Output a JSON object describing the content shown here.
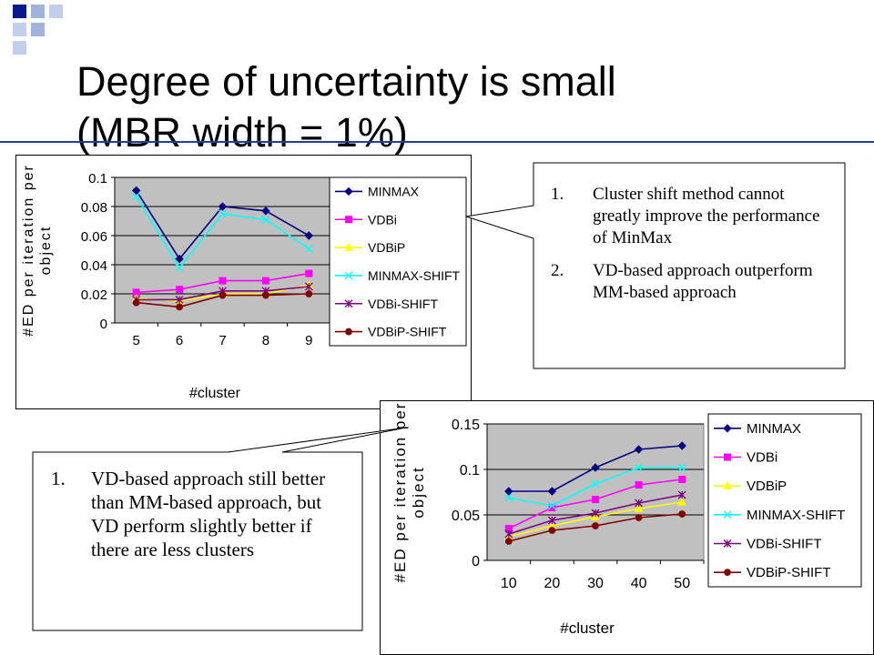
{
  "slide": {
    "title_line1": "Degree of uncertainty is small",
    "title_line2": "(MBR width = 1%)"
  },
  "callouts": [
    {
      "items": [
        {
          "num": "1.",
          "text": "Cluster shift method cannot greatly improve the performance of MinMax"
        },
        {
          "num": "2.",
          "text": "VD-based approach outperform MM-based approach"
        }
      ]
    },
    {
      "items": [
        {
          "num": "1.",
          "text": "VD-based approach still better than MM-based approach, but VD perform slightly better if there are less clusters"
        }
      ]
    }
  ],
  "colors": {
    "accent_blue": "#1f3f9e",
    "plot_bg": "#c0c0c0",
    "MINMAX": "#000080",
    "VDBi": "#ff00ff",
    "VDBiP": "#ffff00",
    "MINMAX-SHIFT": "#00ffff",
    "VDBi-SHIFT": "#800080",
    "VDBiP-SHIFT": "#800000"
  },
  "chart_data": [
    {
      "type": "line",
      "xlabel": "#cluster",
      "ylabel": "#ED per iteration per object",
      "categories": [
        "5",
        "6",
        "7",
        "8",
        "9"
      ],
      "ylim": [
        0,
        0.1
      ],
      "yticks": [
        "0",
        "0.02",
        "0.04",
        "0.06",
        "0.08",
        "0.1"
      ],
      "grid": true,
      "legend_position": "right",
      "series": [
        {
          "name": "MINMAX",
          "marker": "diamond",
          "values": [
            0.091,
            0.044,
            0.08,
            0.077,
            0.06
          ]
        },
        {
          "name": "VDBi",
          "marker": "square",
          "values": [
            0.021,
            0.023,
            0.029,
            0.029,
            0.034
          ]
        },
        {
          "name": "VDBiP",
          "marker": "triangle",
          "values": [
            0.017,
            0.015,
            0.02,
            0.02,
            0.026
          ]
        },
        {
          "name": "MINMAX-SHIFT",
          "marker": "x",
          "values": [
            0.087,
            0.038,
            0.075,
            0.071,
            0.051
          ]
        },
        {
          "name": "VDBi-SHIFT",
          "marker": "star",
          "values": [
            0.016,
            0.016,
            0.022,
            0.022,
            0.025
          ]
        },
        {
          "name": "VDBiP-SHIFT",
          "marker": "circle",
          "values": [
            0.014,
            0.011,
            0.019,
            0.019,
            0.02
          ]
        }
      ]
    },
    {
      "type": "line",
      "xlabel": "#cluster",
      "ylabel": "#ED per iteration per object",
      "categories": [
        "10",
        "20",
        "30",
        "40",
        "50"
      ],
      "ylim": [
        0,
        0.15
      ],
      "yticks": [
        "0",
        "0.05",
        "0.1",
        "0.15"
      ],
      "grid": true,
      "legend_position": "right",
      "series": [
        {
          "name": "MINMAX",
          "marker": "diamond",
          "values": [
            0.076,
            0.076,
            0.102,
            0.122,
            0.126
          ]
        },
        {
          "name": "VDBi",
          "marker": "square",
          "values": [
            0.035,
            0.058,
            0.067,
            0.083,
            0.089
          ]
        },
        {
          "name": "VDBiP",
          "marker": "triangle",
          "values": [
            0.026,
            0.038,
            0.048,
            0.057,
            0.064
          ]
        },
        {
          "name": "MINMAX-SHIFT",
          "marker": "x",
          "values": [
            0.069,
            0.06,
            0.084,
            0.102,
            0.102
          ]
        },
        {
          "name": "VDBi-SHIFT",
          "marker": "star",
          "values": [
            0.029,
            0.044,
            0.052,
            0.063,
            0.072
          ]
        },
        {
          "name": "VDBiP-SHIFT",
          "marker": "circle",
          "values": [
            0.021,
            0.033,
            0.038,
            0.047,
            0.051
          ]
        }
      ]
    }
  ]
}
